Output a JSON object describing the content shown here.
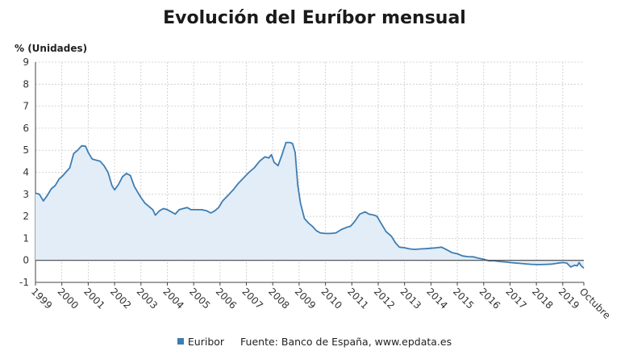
{
  "colors": {
    "line": "#3d7db3",
    "area": "#e3edf7",
    "grid": "#c9c9c9",
    "zero_line": "#444444",
    "axis": "#444444"
  },
  "legend": {
    "series_label": "Euribor",
    "source": "Fuente: Banco de España, www.epdata.es"
  },
  "chart_data": {
    "type": "area",
    "title": "Evolución del Euríbor mensual",
    "xlabel": "",
    "ylabel": "% (Unidades)",
    "ylim": [
      -1,
      9
    ],
    "yticks": [
      -1,
      0,
      1,
      2,
      3,
      4,
      5,
      6,
      7,
      8,
      9
    ],
    "xlim": [
      1999.0,
      2019.8
    ],
    "xticks": [
      {
        "x": 1999,
        "label": "1999"
      },
      {
        "x": 2000,
        "label": "2000"
      },
      {
        "x": 2001,
        "label": "2001"
      },
      {
        "x": 2002,
        "label": "2002"
      },
      {
        "x": 2003,
        "label": "2003"
      },
      {
        "x": 2004,
        "label": "2004"
      },
      {
        "x": 2005,
        "label": "2005"
      },
      {
        "x": 2006,
        "label": "2006"
      },
      {
        "x": 2007,
        "label": "2007"
      },
      {
        "x": 2008,
        "label": "2008"
      },
      {
        "x": 2009,
        "label": "2009"
      },
      {
        "x": 2010,
        "label": "2010"
      },
      {
        "x": 2011,
        "label": "2011"
      },
      {
        "x": 2012,
        "label": "2012"
      },
      {
        "x": 2013,
        "label": "2013"
      },
      {
        "x": 2014,
        "label": "2014"
      },
      {
        "x": 2015,
        "label": "2015"
      },
      {
        "x": 2016,
        "label": "2016"
      },
      {
        "x": 2017,
        "label": "2017"
      },
      {
        "x": 2018,
        "label": "2018"
      },
      {
        "x": 2019,
        "label": "2019"
      },
      {
        "x": 2019.8,
        "label": "Octubre"
      }
    ],
    "grid": true,
    "legend_position": "bottom",
    "series": [
      {
        "name": "Euribor",
        "points": [
          [
            1999.0,
            3.05
          ],
          [
            1999.15,
            3.0
          ],
          [
            1999.3,
            2.7
          ],
          [
            1999.45,
            2.95
          ],
          [
            1999.6,
            3.25
          ],
          [
            1999.75,
            3.4
          ],
          [
            1999.9,
            3.7
          ],
          [
            2000.0,
            3.8
          ],
          [
            2000.15,
            4.0
          ],
          [
            2000.3,
            4.2
          ],
          [
            2000.45,
            4.85
          ],
          [
            2000.6,
            5.0
          ],
          [
            2000.75,
            5.2
          ],
          [
            2000.9,
            5.18
          ],
          [
            2001.0,
            4.9
          ],
          [
            2001.15,
            4.6
          ],
          [
            2001.3,
            4.55
          ],
          [
            2001.45,
            4.5
          ],
          [
            2001.6,
            4.3
          ],
          [
            2001.75,
            4.0
          ],
          [
            2001.9,
            3.4
          ],
          [
            2002.0,
            3.2
          ],
          [
            2002.15,
            3.45
          ],
          [
            2002.3,
            3.8
          ],
          [
            2002.45,
            3.95
          ],
          [
            2002.6,
            3.85
          ],
          [
            2002.75,
            3.35
          ],
          [
            2002.9,
            3.05
          ],
          [
            2003.0,
            2.85
          ],
          [
            2003.15,
            2.6
          ],
          [
            2003.3,
            2.45
          ],
          [
            2003.45,
            2.3
          ],
          [
            2003.55,
            2.05
          ],
          [
            2003.7,
            2.25
          ],
          [
            2003.85,
            2.35
          ],
          [
            2004.0,
            2.3
          ],
          [
            2004.15,
            2.2
          ],
          [
            2004.3,
            2.1
          ],
          [
            2004.45,
            2.3
          ],
          [
            2004.6,
            2.35
          ],
          [
            2004.75,
            2.4
          ],
          [
            2004.9,
            2.3
          ],
          [
            2005.05,
            2.3
          ],
          [
            2005.3,
            2.3
          ],
          [
            2005.5,
            2.25
          ],
          [
            2005.65,
            2.15
          ],
          [
            2005.8,
            2.25
          ],
          [
            2005.95,
            2.4
          ],
          [
            2006.1,
            2.7
          ],
          [
            2006.3,
            2.95
          ],
          [
            2006.5,
            3.2
          ],
          [
            2006.7,
            3.5
          ],
          [
            2006.9,
            3.75
          ],
          [
            2007.1,
            4.0
          ],
          [
            2007.3,
            4.2
          ],
          [
            2007.5,
            4.5
          ],
          [
            2007.7,
            4.7
          ],
          [
            2007.85,
            4.65
          ],
          [
            2007.95,
            4.8
          ],
          [
            2008.05,
            4.45
          ],
          [
            2008.2,
            4.3
          ],
          [
            2008.35,
            4.8
          ],
          [
            2008.5,
            5.35
          ],
          [
            2008.65,
            5.35
          ],
          [
            2008.75,
            5.3
          ],
          [
            2008.85,
            4.9
          ],
          [
            2008.95,
            3.4
          ],
          [
            2009.05,
            2.6
          ],
          [
            2009.2,
            1.9
          ],
          [
            2009.35,
            1.7
          ],
          [
            2009.5,
            1.55
          ],
          [
            2009.65,
            1.35
          ],
          [
            2009.8,
            1.25
          ],
          [
            2010.0,
            1.22
          ],
          [
            2010.2,
            1.22
          ],
          [
            2010.4,
            1.25
          ],
          [
            2010.6,
            1.4
          ],
          [
            2010.8,
            1.5
          ],
          [
            2010.95,
            1.55
          ],
          [
            2011.1,
            1.75
          ],
          [
            2011.3,
            2.1
          ],
          [
            2011.5,
            2.2
          ],
          [
            2011.65,
            2.1
          ],
          [
            2011.85,
            2.05
          ],
          [
            2011.95,
            2.0
          ],
          [
            2012.1,
            1.7
          ],
          [
            2012.3,
            1.3
          ],
          [
            2012.5,
            1.1
          ],
          [
            2012.65,
            0.8
          ],
          [
            2012.8,
            0.6
          ],
          [
            2013.0,
            0.57
          ],
          [
            2013.2,
            0.52
          ],
          [
            2013.4,
            0.5
          ],
          [
            2013.6,
            0.52
          ],
          [
            2013.8,
            0.53
          ],
          [
            2014.0,
            0.55
          ],
          [
            2014.2,
            0.57
          ],
          [
            2014.4,
            0.6
          ],
          [
            2014.6,
            0.48
          ],
          [
            2014.8,
            0.35
          ],
          [
            2015.0,
            0.3
          ],
          [
            2015.2,
            0.2
          ],
          [
            2015.4,
            0.17
          ],
          [
            2015.6,
            0.16
          ],
          [
            2015.8,
            0.1
          ],
          [
            2016.0,
            0.05
          ],
          [
            2016.2,
            -0.02
          ],
          [
            2016.4,
            -0.02
          ],
          [
            2016.6,
            -0.05
          ],
          [
            2016.8,
            -0.07
          ],
          [
            2017.0,
            -0.1
          ],
          [
            2017.2,
            -0.12
          ],
          [
            2017.4,
            -0.14
          ],
          [
            2017.6,
            -0.16
          ],
          [
            2017.8,
            -0.18
          ],
          [
            2018.0,
            -0.19
          ],
          [
            2018.2,
            -0.19
          ],
          [
            2018.4,
            -0.18
          ],
          [
            2018.6,
            -0.17
          ],
          [
            2018.8,
            -0.13
          ],
          [
            2019.0,
            -0.1
          ],
          [
            2019.15,
            -0.12
          ],
          [
            2019.3,
            -0.3
          ],
          [
            2019.45,
            -0.22
          ],
          [
            2019.55,
            -0.25
          ],
          [
            2019.62,
            -0.1
          ],
          [
            2019.7,
            -0.25
          ],
          [
            2019.8,
            -0.35
          ]
        ]
      }
    ]
  }
}
